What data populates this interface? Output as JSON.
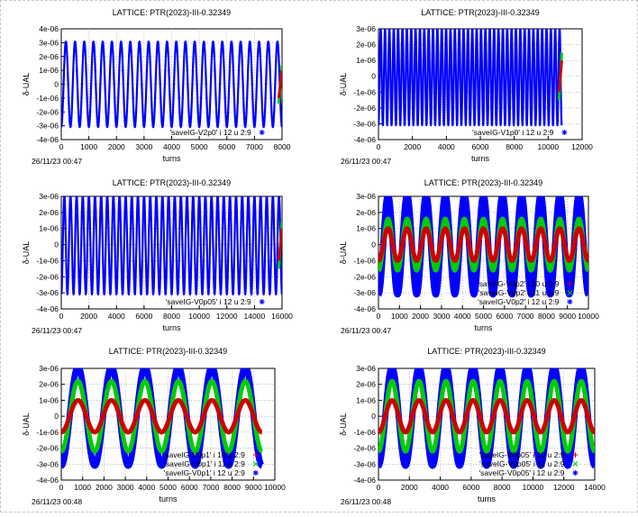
{
  "chart_data": [
    {
      "type": "line",
      "title": "LATTICE: PTR(2023)-III-0.32349",
      "xlabel": "turns",
      "ylabel": "δ-UAL",
      "xlim": [
        0,
        8000
      ],
      "ylim": [
        -4e-06,
        4e-06
      ],
      "xticks": [
        0,
        1000,
        2000,
        3000,
        4000,
        5000,
        6000,
        7000,
        8000
      ],
      "xtick_labels": [
        "0",
        "1000",
        "2000",
        "3000",
        "4000",
        "5000",
        "6000",
        "7000",
        "8000"
      ],
      "yticks": [
        -4e-06,
        -3e-06,
        -2e-06,
        -1e-06,
        0,
        1e-06,
        2e-06,
        3e-06,
        4e-06
      ],
      "ytick_labels": [
        "-4e-06",
        "-3e-06",
        "-2e-06",
        "-1e-06",
        "0",
        "1e-06",
        "2e-06",
        "3e-06",
        "4e-06"
      ],
      "grid": true,
      "legend_position": "bottom-right",
      "timestamp": "26/11/23 00:47",
      "series": [
        {
          "name": "'saveIG-V2p0' i 12 u 2:9",
          "color": "#0000ff",
          "marker": "asterisk",
          "amplitude": 3.1e-06,
          "oscillations": 24,
          "x_end": 8000
        }
      ],
      "hidden_series": [
        {
          "color": "#00cc00",
          "amplitude": 1.4e-06
        },
        {
          "color": "#cc0000",
          "amplitude": 1e-06
        }
      ]
    },
    {
      "type": "line",
      "title": "LATTICE: PTR(2023)-III-0.32349",
      "xlabel": "turns",
      "ylabel": "δ-UAL",
      "xlim": [
        0,
        12000
      ],
      "ylim": [
        -4e-06,
        3e-06
      ],
      "xticks": [
        0,
        2000,
        4000,
        6000,
        8000,
        10000,
        12000
      ],
      "xtick_labels": [
        "0",
        "2000",
        "4000",
        "6000",
        "8000",
        "10000",
        "12000"
      ],
      "yticks": [
        -4e-06,
        -3e-06,
        -2e-06,
        -1e-06,
        0,
        1e-06,
        2e-06,
        3e-06
      ],
      "ytick_labels": [
        "-4e-06",
        "-3e-06",
        "-2e-06",
        "-1e-06",
        "0",
        "1e-06",
        "2e-06",
        "3e-06"
      ],
      "grid": true,
      "legend_position": "bottom-right",
      "timestamp": "26/11/23 00:47",
      "series": [
        {
          "name": "'saveIG-V1p0' i 12 u 2:9",
          "color": "#0000ff",
          "marker": "asterisk",
          "amplitude": 3.1e-06,
          "oscillations": 42,
          "x_end": 10800
        }
      ],
      "hidden_series": [
        {
          "color": "#00cc00",
          "amplitude": 1.5e-06
        },
        {
          "color": "#cc0000",
          "amplitude": 1e-06
        }
      ]
    },
    {
      "type": "line",
      "title": "LATTICE: PTR(2023)-III-0.32349",
      "xlabel": "turns",
      "ylabel": "δ-UAL",
      "xlim": [
        0,
        16000
      ],
      "ylim": [
        -4e-06,
        3e-06
      ],
      "xticks": [
        0,
        2000,
        4000,
        6000,
        8000,
        10000,
        12000,
        14000,
        16000
      ],
      "xtick_labels": [
        "0",
        "2000",
        "4000",
        "6000",
        "8000",
        "10000",
        "12000",
        "14000",
        "16000"
      ],
      "yticks": [
        -4e-06,
        -3e-06,
        -2e-06,
        -1e-06,
        0,
        1e-06,
        2e-06,
        3e-06
      ],
      "ytick_labels": [
        "-4e-06",
        "-3e-06",
        "-2e-06",
        "-1e-06",
        "0",
        "1e-06",
        "2e-06",
        "3e-06"
      ],
      "grid": true,
      "legend_position": "bottom-right",
      "timestamp": "26/11/23 00:47",
      "series": [
        {
          "name": "'saveIG-V0p05' i 12 u 2:9",
          "color": "#0000ff",
          "marker": "asterisk",
          "amplitude": 3.1e-06,
          "oscillations": 36,
          "x_end": 16000
        }
      ],
      "hidden_series": [
        {
          "color": "#00cc00",
          "amplitude": 1.5e-06
        },
        {
          "color": "#cc0000",
          "amplitude": 1e-06
        }
      ]
    },
    {
      "type": "line",
      "title": "LATTICE: PTR(2023)-III-0.32349",
      "xlabel": "turns",
      "ylabel": "δ-UAL",
      "xlim": [
        0,
        10000
      ],
      "ylim": [
        -4e-06,
        3e-06
      ],
      "xticks": [
        0,
        1000,
        2000,
        3000,
        4000,
        5000,
        6000,
        7000,
        8000,
        9000,
        10000
      ],
      "xtick_labels": [
        "0",
        "1000",
        "2000",
        "3000",
        "4000",
        "5000",
        "6000",
        "7000",
        "8000",
        "9000",
        "10000"
      ],
      "yticks": [
        -4e-06,
        -3e-06,
        -2e-06,
        -1e-06,
        0,
        1e-06,
        2e-06,
        3e-06
      ],
      "ytick_labels": [
        "-4e-06",
        "-3e-06",
        "-2e-06",
        "-1e-06",
        "0",
        "1e-06",
        "2e-06",
        "3e-06"
      ],
      "grid": true,
      "legend_position": "bottom-right",
      "timestamp": "26/11/23 00:47",
      "series": [
        {
          "name": "'saveIG-V0p2' i 10 u 2:9",
          "color": "#cc0000",
          "marker": "plus",
          "amplitude": 1e-06,
          "oscillations": 11,
          "x_end": 10000
        },
        {
          "name": "'saveIG-V0p2' i 11 u 2:9",
          "color": "#00cc00",
          "marker": "cross",
          "amplitude": 1.6e-06,
          "oscillations": 11,
          "x_end": 10000
        },
        {
          "name": "'saveIG-V0p2' i 12 u 2:9",
          "color": "#0000ff",
          "marker": "asterisk",
          "amplitude": 3.1e-06,
          "oscillations": 11,
          "x_end": 10000
        }
      ]
    },
    {
      "type": "line",
      "title": "LATTICE: PTR(2023)-III-0.32349",
      "xlabel": "turns",
      "ylabel": "δ-UAL",
      "xlim": [
        0,
        10000
      ],
      "ylim": [
        -4e-06,
        3e-06
      ],
      "xticks": [
        0,
        1000,
        2000,
        3000,
        4000,
        5000,
        6000,
        7000,
        8000,
        9000,
        10000
      ],
      "xtick_labels": [
        "0",
        "1000",
        "2000",
        "3000",
        "4000",
        "5000",
        "6000",
        "7000",
        "8000",
        "9000",
        "10000"
      ],
      "yticks": [
        -4e-06,
        -3e-06,
        -2e-06,
        -1e-06,
        0,
        1e-06,
        2e-06,
        3e-06
      ],
      "ytick_labels": [
        "-4e-06",
        "-3e-06",
        "-2e-06",
        "-1e-06",
        "0",
        "1e-06",
        "2e-06",
        "3e-06"
      ],
      "grid": true,
      "legend_position": "bottom-right",
      "timestamp": "26/11/23 00:48",
      "series": [
        {
          "name": "'saveIG-V0p1' i 10 u 2:9",
          "color": "#cc0000",
          "marker": "plus",
          "amplitude": 1e-06,
          "oscillations": 6,
          "x_end": 9400
        },
        {
          "name": "'saveIG-V0p1' i 11 u 2:9",
          "color": "#00cc00",
          "marker": "cross",
          "amplitude": 2.2e-06,
          "oscillations": 6,
          "x_end": 9400
        },
        {
          "name": "'saveIG-V0p1' i 12 u 2:9",
          "color": "#0000ff",
          "marker": "asterisk",
          "amplitude": 3.1e-06,
          "oscillations": 6,
          "x_end": 9400
        }
      ]
    },
    {
      "type": "line",
      "title": "LATTICE: PTR(2023)-III-0.32349",
      "xlabel": "turns",
      "ylabel": "δ-UAL",
      "xlim": [
        0,
        14000
      ],
      "ylim": [
        -4e-06,
        3e-06
      ],
      "xticks": [
        0,
        2000,
        4000,
        6000,
        8000,
        10000,
        12000,
        14000
      ],
      "xtick_labels": [
        "0",
        "2000",
        "4000",
        "6000",
        "8000",
        "10000",
        "12000",
        "14000"
      ],
      "yticks": [
        -4e-06,
        -3e-06,
        -2e-06,
        -1e-06,
        0,
        1e-06,
        2e-06,
        3e-06
      ],
      "ytick_labels": [
        "-4e-06",
        "-3e-06",
        "-2e-06",
        "-1e-06",
        "0",
        "1e-06",
        "2e-06",
        "3e-06"
      ],
      "grid": true,
      "legend_position": "bottom-right",
      "timestamp": "26/11/23 00:48",
      "series": [
        {
          "name": "'saveIG-V0p05' i 10 u 2:9",
          "color": "#cc0000",
          "marker": "plus",
          "amplitude": 1e-06,
          "oscillations": 8,
          "x_end": 14000
        },
        {
          "name": "'saveIG-V0p05' i 11 u 2:9",
          "color": "#00cc00",
          "marker": "cross",
          "amplitude": 2.2e-06,
          "oscillations": 8,
          "x_end": 14000
        },
        {
          "name": "'saveIG-V0p05' i 12 u 2:9",
          "color": "#0000ff",
          "marker": "asterisk",
          "amplitude": 3.1e-06,
          "oscillations": 8,
          "x_end": 14000
        }
      ]
    }
  ]
}
